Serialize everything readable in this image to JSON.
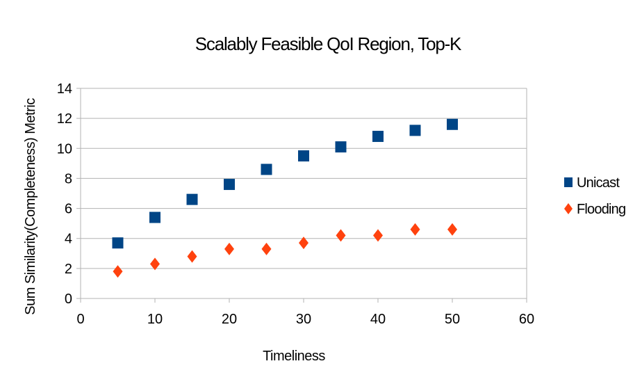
{
  "chart_data": {
    "type": "scatter",
    "title": "Scalably Feasible QoI Region, Top-K",
    "xlabel": "Timeliness",
    "ylabel": "Sum Similarity(Completeness) Metric",
    "xlim": [
      0,
      60
    ],
    "ylim": [
      0,
      14
    ],
    "xticks": [
      0,
      10,
      20,
      30,
      40,
      50,
      60
    ],
    "yticks": [
      0,
      2,
      4,
      6,
      8,
      10,
      12,
      14
    ],
    "grid": "horizontal",
    "legend_position": "right",
    "series": [
      {
        "name": "Unicast",
        "marker": "square",
        "color": "#004586",
        "x": [
          5,
          10,
          15,
          20,
          25,
          30,
          35,
          40,
          45,
          50
        ],
        "y": [
          3.7,
          5.4,
          6.6,
          7.6,
          8.6,
          9.5,
          10.1,
          10.8,
          11.2,
          11.6
        ]
      },
      {
        "name": "Flooding",
        "marker": "diamond",
        "color": "#ff420e",
        "x": [
          5,
          10,
          15,
          20,
          25,
          30,
          35,
          40,
          45,
          50
        ],
        "y": [
          1.8,
          2.3,
          2.8,
          3.3,
          3.3,
          3.7,
          4.2,
          4.2,
          4.6,
          4.6
        ]
      }
    ]
  }
}
